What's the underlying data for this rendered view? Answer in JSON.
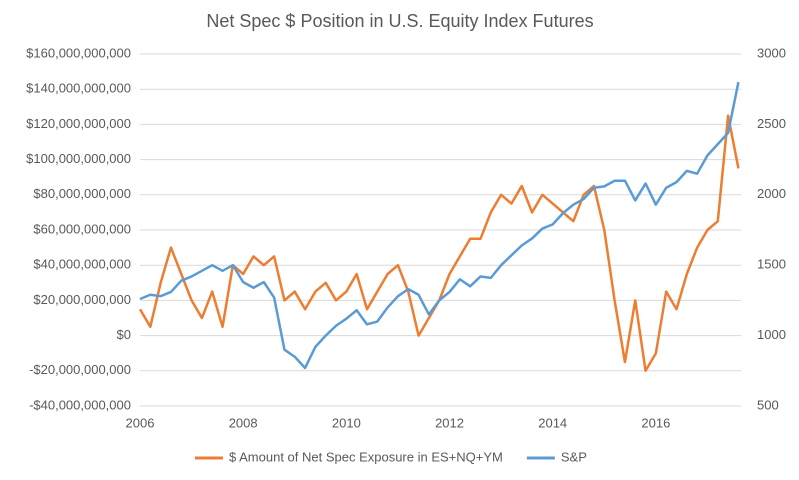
{
  "chart_data": {
    "type": "line",
    "title": "Net Spec $ Position in U.S. Equity Index Futures",
    "x": [
      2006.0,
      2006.2,
      2006.4,
      2006.6,
      2006.8,
      2007.0,
      2007.2,
      2007.4,
      2007.6,
      2007.8,
      2008.0,
      2008.2,
      2008.4,
      2008.6,
      2008.8,
      2009.0,
      2009.2,
      2009.4,
      2009.6,
      2009.8,
      2010.0,
      2010.2,
      2010.4,
      2010.6,
      2010.8,
      2011.0,
      2011.2,
      2011.4,
      2011.6,
      2011.8,
      2012.0,
      2012.2,
      2012.4,
      2012.6,
      2012.8,
      2013.0,
      2013.2,
      2013.4,
      2013.6,
      2013.8,
      2014.0,
      2014.2,
      2014.4,
      2014.6,
      2014.8,
      2015.0,
      2015.2,
      2015.4,
      2015.6,
      2015.8,
      2016.0,
      2016.2,
      2016.4,
      2016.6,
      2016.8,
      2017.0,
      2017.2,
      2017.4,
      2017.6
    ],
    "xlim": [
      2006,
      2017.65
    ],
    "xticks": [
      2006,
      2008,
      2010,
      2012,
      2014,
      2016
    ],
    "ylim": [
      -40000000000,
      160000000000
    ],
    "yticks": [
      {
        "value": -40000000000,
        "label": "-$40,000,000,000"
      },
      {
        "value": -20000000000,
        "label": "-$20,000,000,000"
      },
      {
        "value": 0,
        "label": "$0"
      },
      {
        "value": 20000000000,
        "label": "$20,000,000,000"
      },
      {
        "value": 40000000000,
        "label": "$40,000,000,000"
      },
      {
        "value": 60000000000,
        "label": "$60,000,000,000"
      },
      {
        "value": 80000000000,
        "label": "$80,000,000,000"
      },
      {
        "value": 100000000000,
        "label": "$100,000,000,000"
      },
      {
        "value": 120000000000,
        "label": "$120,000,000,000"
      },
      {
        "value": 140000000000,
        "label": "$140,000,000,000"
      },
      {
        "value": 160000000000,
        "label": "$160,000,000,000"
      }
    ],
    "y2lim": [
      500,
      3000
    ],
    "y2ticks": [
      500,
      1000,
      1500,
      2000,
      2500,
      3000
    ],
    "grid": true,
    "legend": "bottom",
    "series": [
      {
        "name": "$ Amount of Net Spec Exposure in ES+NQ+YM",
        "color": "#ed7d31",
        "values": [
          15000000000,
          5000000000,
          30000000000,
          50000000000,
          35000000000,
          20000000000,
          10000000000,
          25000000000,
          5000000000,
          40000000000,
          35000000000,
          45000000000,
          40000000000,
          45000000000,
          20000000000,
          25000000000,
          15000000000,
          25000000000,
          30000000000,
          20000000000,
          25000000000,
          35000000000,
          15000000000,
          25000000000,
          35000000000,
          40000000000,
          25000000000,
          0,
          10000000000,
          20000000000,
          35000000000,
          45000000000,
          55000000000,
          55000000000,
          70000000000,
          80000000000,
          75000000000,
          85000000000,
          70000000000,
          80000000000,
          75000000000,
          70000000000,
          65000000000,
          80000000000,
          85000000000,
          60000000000,
          20000000000,
          -15000000000,
          20000000000,
          -20000000000,
          -10000000000,
          25000000000,
          15000000000,
          35000000000,
          50000000000,
          60000000000,
          65000000000,
          125000000000,
          95000000000
        ]
      },
      {
        "name": "S&P",
        "color": "#5b9bd5",
        "axis": "y2",
        "values": [
          1260,
          1290,
          1280,
          1310,
          1390,
          1420,
          1460,
          1500,
          1460,
          1500,
          1380,
          1340,
          1380,
          1270,
          900,
          850,
          770,
          920,
          1000,
          1070,
          1120,
          1180,
          1080,
          1100,
          1200,
          1280,
          1330,
          1290,
          1150,
          1250,
          1310,
          1400,
          1350,
          1420,
          1410,
          1500,
          1570,
          1640,
          1690,
          1760,
          1790,
          1870,
          1930,
          1970,
          2050,
          2060,
          2100,
          2100,
          1960,
          2080,
          1930,
          2050,
          2090,
          2170,
          2150,
          2280,
          2360,
          2440,
          2800
        ]
      }
    ]
  }
}
